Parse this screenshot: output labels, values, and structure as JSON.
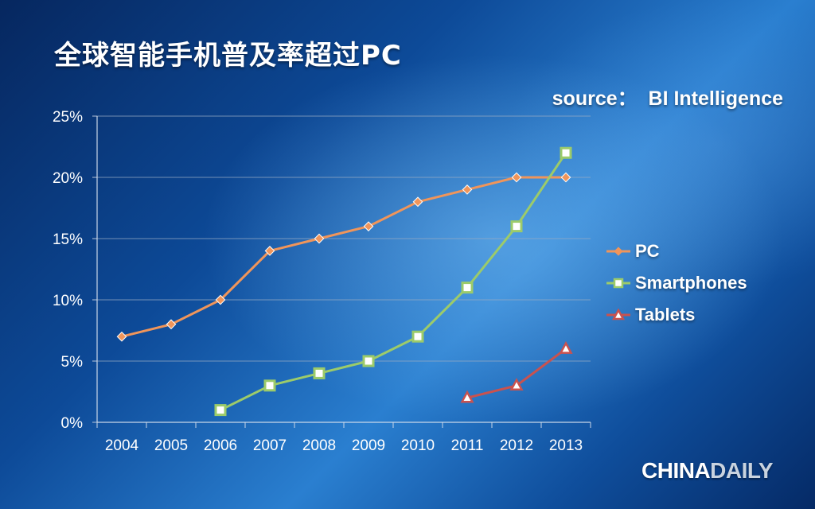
{
  "title": "全球智能手机普及率超过PC",
  "source": "source：  BI Intelligence",
  "logo": {
    "part1": "CHINA",
    "part2": "DAILY"
  },
  "colors": {
    "pc": "#f0955a",
    "smartphones": "#9ccb6a",
    "tablets": "#c9524f"
  },
  "chart_data": {
    "type": "line",
    "categories": [
      "2004",
      "2005",
      "2006",
      "2007",
      "2008",
      "2009",
      "2010",
      "2011",
      "2012",
      "2013"
    ],
    "y_ticks": [
      "0%",
      "5%",
      "10%",
      "15%",
      "20%",
      "25%"
    ],
    "ylim": [
      0,
      25
    ],
    "grid": true,
    "legend_position": "right",
    "series": [
      {
        "name": "PC",
        "marker": "diamond",
        "values": [
          7,
          8,
          10,
          14,
          15,
          16,
          18,
          19,
          20,
          20
        ]
      },
      {
        "name": "Smartphones",
        "marker": "square",
        "values": [
          null,
          null,
          1,
          3,
          4,
          5,
          7,
          11,
          16,
          22
        ]
      },
      {
        "name": "Tablets",
        "marker": "triangle",
        "values": [
          null,
          null,
          null,
          null,
          null,
          null,
          null,
          2,
          3,
          6
        ]
      }
    ]
  }
}
